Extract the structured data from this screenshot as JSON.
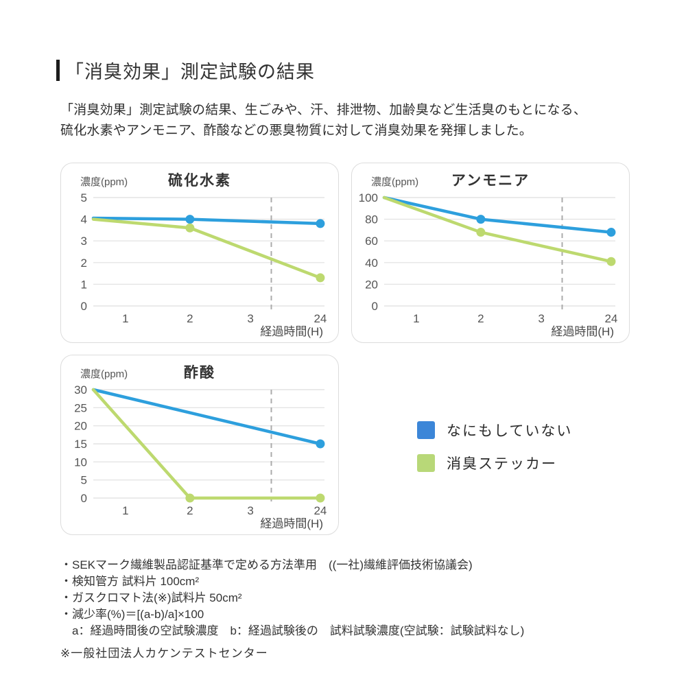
{
  "page": {
    "title": "「消臭効果」測定試験の結果",
    "intro_line1": "「消臭効果」測定試験の結果、生ごみや、汗、排泄物、加齢臭など生活臭のもとになる、",
    "intro_line2": "硫化水素やアンモニア、酢酸などの悪臭物質に対して消臭効果を発揮しました。"
  },
  "chart_data": [
    {
      "type": "line",
      "title": "硫化水素",
      "y_axis_label": "濃度(ppm)",
      "x_axis_label": "経過時間(H)",
      "x_ticks": [
        "1",
        "2",
        "3",
        "24"
      ],
      "y_ticks": [
        5,
        4,
        3,
        2,
        1,
        0
      ],
      "y_max": 5,
      "dashed_guide": true,
      "grid": true,
      "series": [
        {
          "name": "なにもしていない",
          "color": "#2d9fdd",
          "points": [
            {
              "x": "start",
              "y": 4.05
            },
            {
              "x": "2",
              "y": 4.0,
              "dot": true
            },
            {
              "x": "24",
              "y": 3.8,
              "dot": true
            }
          ]
        },
        {
          "name": "消臭ステッカー",
          "color": "#bdd96f",
          "points": [
            {
              "x": "start",
              "y": 4.0
            },
            {
              "x": "2",
              "y": 3.6,
              "dot": true
            },
            {
              "x": "24",
              "y": 1.3,
              "dot": true
            }
          ]
        }
      ]
    },
    {
      "type": "line",
      "title": "アンモニア",
      "y_axis_label": "濃度(ppm)",
      "x_axis_label": "経過時間(H)",
      "x_ticks": [
        "1",
        "2",
        "3",
        "24"
      ],
      "y_ticks": [
        100,
        80,
        60,
        40,
        20,
        0
      ],
      "y_max": 100,
      "dashed_guide": true,
      "grid": true,
      "series": [
        {
          "name": "なにもしていない",
          "color": "#2d9fdd",
          "points": [
            {
              "x": "start",
              "y": 100
            },
            {
              "x": "2",
              "y": 80,
              "dot": true
            },
            {
              "x": "24",
              "y": 68,
              "dot": true
            }
          ]
        },
        {
          "name": "消臭ステッカー",
          "color": "#bdd96f",
          "points": [
            {
              "x": "start",
              "y": 100
            },
            {
              "x": "2",
              "y": 68,
              "dot": true
            },
            {
              "x": "24",
              "y": 41,
              "dot": true
            }
          ]
        }
      ]
    },
    {
      "type": "line",
      "title": "酢酸",
      "y_axis_label": "濃度(ppm)",
      "x_axis_label": "経過時間(H)",
      "x_ticks": [
        "1",
        "2",
        "3",
        "24"
      ],
      "y_ticks": [
        30,
        25,
        20,
        15,
        10,
        5,
        0
      ],
      "y_max": 30,
      "dashed_guide": true,
      "grid": true,
      "series": [
        {
          "name": "なにもしていない",
          "color": "#2d9fdd",
          "points": [
            {
              "x": "start",
              "y": 30
            },
            {
              "x": "24",
              "y": 15,
              "dot": true
            }
          ]
        },
        {
          "name": "消臭ステッカー",
          "color": "#bdd96f",
          "points": [
            {
              "x": "start",
              "y": 30
            },
            {
              "x": "2",
              "y": 0,
              "dot": true
            },
            {
              "x": "24",
              "y": 0,
              "dot": true
            }
          ]
        }
      ]
    }
  ],
  "legend": {
    "items": [
      {
        "label": "なにもしていない",
        "color": "#3c86d8"
      },
      {
        "label": "消臭ステッカー",
        "color": "#b8d878"
      }
    ]
  },
  "notes": {
    "items": [
      "・SEKマーク繊維製品認証基準で定める方法準用　((一社)繊維評価技術協議会)",
      "・検知管方 試料片 100cm²",
      "・ガスクロマト法(※)試料片 50cm²",
      "・減少率(%)＝[(a-b)/a]×100",
      "　a：経過時間後の空試験濃度　b：経過試験後の　試料試験濃度(空試験：試験試料なし)"
    ],
    "asterisk": "※一般社団法人カケンテストセンター"
  },
  "colors": {
    "line_blue": "#2d9fdd",
    "line_green": "#bdd96f",
    "legend_blue": "#3c86d8",
    "legend_green": "#b8d878",
    "grid": "#e4e4e4",
    "dashed_guide": "#ababab",
    "tick_text": "#555555"
  }
}
